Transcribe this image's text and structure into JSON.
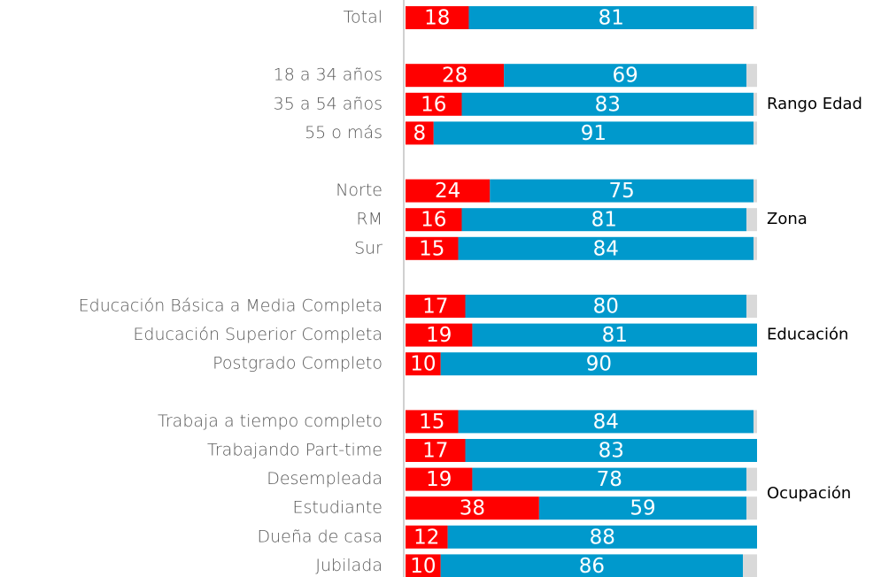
{
  "chart_data": {
    "type": "stacked_bar_horizontal",
    "categories": [
      "Total",
      "18 a 34 años",
      "35 a 54 años",
      "55 o más",
      "Norte",
      "RM",
      "Sur",
      "Educación Básica a Media Completa",
      "Educación Superior Completa",
      "Postgrado Completo",
      "Trabaja a tiempo completo",
      "Trabajando Part-time",
      "Desempleada",
      "Estudiante",
      "Dueña de casa",
      "Jubilada"
    ],
    "group_labels": [
      null,
      "Rango Edad",
      "Rango Edad",
      "Rango Edad",
      "Zona",
      "Zona",
      "Zona",
      "Educación",
      "Educación",
      "Educación",
      "Ocupación",
      "Ocupación",
      "Ocupación",
      "Ocupación",
      "Ocupación",
      "Ocupación"
    ],
    "series": [
      {
        "color": "#ff0000",
        "values": [
          18,
          28,
          16,
          8,
          24,
          16,
          15,
          17,
          19,
          10,
          15,
          17,
          19,
          38,
          12,
          10
        ],
        "show_labels": true
      },
      {
        "color": "#0099cc",
        "values": [
          81,
          69,
          83,
          91,
          75,
          81,
          84,
          80,
          81,
          90,
          84,
          83,
          78,
          59,
          88,
          86
        ],
        "show_labels": true
      },
      {
        "color": "#d9d9d9",
        "values": [
          1,
          3,
          1,
          1,
          1,
          3,
          1,
          3,
          0,
          0,
          1,
          0,
          3,
          3,
          0,
          4
        ],
        "show_labels": false
      }
    ],
    "xlim": [
      0,
      100
    ]
  }
}
